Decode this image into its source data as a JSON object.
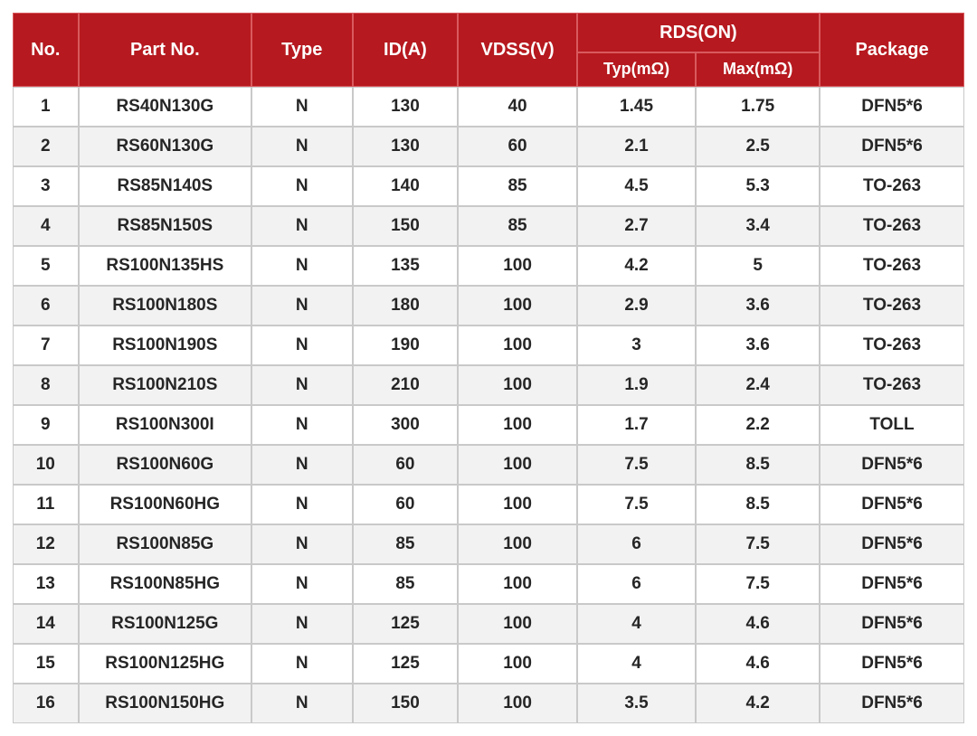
{
  "style": {
    "header_bg": "#b6191f",
    "header_fg": "#ffffff",
    "header_border": "#d85a5e",
    "body_border": "#c9c9c9",
    "body_fg": "#262626",
    "row_odd_bg": "#ffffff",
    "row_even_bg": "#f2f2f2",
    "header_row_h": 44,
    "header_sub_row_h": 38,
    "body_row_h": 44,
    "header_fontsize": 20,
    "sub_header_fontsize": 18,
    "body_fontsize": 19,
    "col_widths_pct": [
      6.9,
      18.2,
      10.6,
      11.1,
      12.5,
      12.5,
      13.0,
      15.2
    ]
  },
  "headers": {
    "no": "No.",
    "part": "Part No.",
    "type": "Type",
    "id": "ID(A)",
    "vdss": "VDSS(V)",
    "rds": "RDS(ON)",
    "typ": "Typ(mΩ)",
    "max": "Max(mΩ)",
    "pkg": "Package"
  },
  "rows": [
    {
      "no": "1",
      "part": "RS40N130G",
      "type": "N",
      "id": "130",
      "vdss": "40",
      "typ": "1.45",
      "max": "1.75",
      "pkg": "DFN5*6"
    },
    {
      "no": "2",
      "part": "RS60N130G",
      "type": "N",
      "id": "130",
      "vdss": "60",
      "typ": "2.1",
      "max": "2.5",
      "pkg": "DFN5*6"
    },
    {
      "no": "3",
      "part": "RS85N140S",
      "type": "N",
      "id": "140",
      "vdss": "85",
      "typ": "4.5",
      "max": "5.3",
      "pkg": "TO-263"
    },
    {
      "no": "4",
      "part": "RS85N150S",
      "type": "N",
      "id": "150",
      "vdss": "85",
      "typ": "2.7",
      "max": "3.4",
      "pkg": "TO-263"
    },
    {
      "no": "5",
      "part": "RS100N135HS",
      "type": "N",
      "id": "135",
      "vdss": "100",
      "typ": "4.2",
      "max": "5",
      "pkg": "TO-263"
    },
    {
      "no": "6",
      "part": "RS100N180S",
      "type": "N",
      "id": "180",
      "vdss": "100",
      "typ": "2.9",
      "max": "3.6",
      "pkg": "TO-263"
    },
    {
      "no": "7",
      "part": "RS100N190S",
      "type": "N",
      "id": "190",
      "vdss": "100",
      "typ": "3",
      "max": "3.6",
      "pkg": "TO-263"
    },
    {
      "no": "8",
      "part": "RS100N210S",
      "type": "N",
      "id": "210",
      "vdss": "100",
      "typ": "1.9",
      "max": "2.4",
      "pkg": "TO-263"
    },
    {
      "no": "9",
      "part": "RS100N300I",
      "type": "N",
      "id": "300",
      "vdss": "100",
      "typ": "1.7",
      "max": "2.2",
      "pkg": "TOLL"
    },
    {
      "no": "10",
      "part": "RS100N60G",
      "type": "N",
      "id": "60",
      "vdss": "100",
      "typ": "7.5",
      "max": "8.5",
      "pkg": "DFN5*6"
    },
    {
      "no": "11",
      "part": "RS100N60HG",
      "type": "N",
      "id": "60",
      "vdss": "100",
      "typ": "7.5",
      "max": "8.5",
      "pkg": "DFN5*6"
    },
    {
      "no": "12",
      "part": "RS100N85G",
      "type": "N",
      "id": "85",
      "vdss": "100",
      "typ": "6",
      "max": "7.5",
      "pkg": "DFN5*6"
    },
    {
      "no": "13",
      "part": "RS100N85HG",
      "type": "N",
      "id": "85",
      "vdss": "100",
      "typ": "6",
      "max": "7.5",
      "pkg": "DFN5*6"
    },
    {
      "no": "14",
      "part": "RS100N125G",
      "type": "N",
      "id": "125",
      "vdss": "100",
      "typ": "4",
      "max": "4.6",
      "pkg": "DFN5*6"
    },
    {
      "no": "15",
      "part": "RS100N125HG",
      "type": "N",
      "id": "125",
      "vdss": "100",
      "typ": "4",
      "max": "4.6",
      "pkg": "DFN5*6"
    },
    {
      "no": "16",
      "part": "RS100N150HG",
      "type": "N",
      "id": "150",
      "vdss": "100",
      "typ": "3.5",
      "max": "4.2",
      "pkg": "DFN5*6"
    }
  ]
}
